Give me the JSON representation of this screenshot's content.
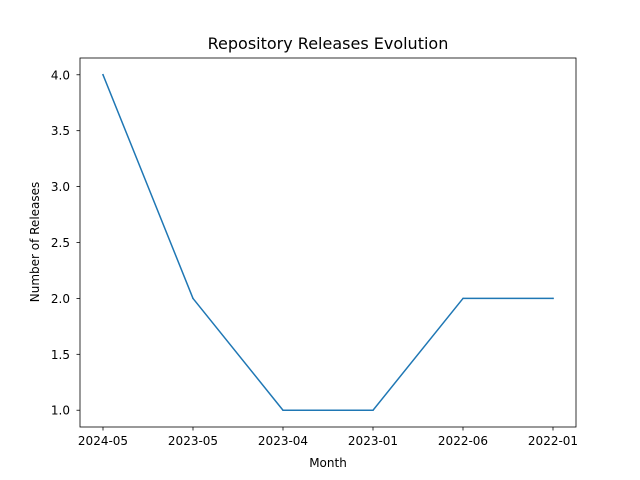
{
  "chart_data": {
    "type": "line",
    "title": "Repository Releases Evolution",
    "xlabel": "Month",
    "ylabel": "Number of Releases",
    "categories": [
      "2024-05",
      "2023-05",
      "2023-04",
      "2023-01",
      "2022-06",
      "2022-01"
    ],
    "series": [
      {
        "values": [
          4,
          2,
          1,
          1,
          2,
          2
        ],
        "color": "#1f77b4"
      }
    ],
    "yticks": [
      1.0,
      1.5,
      2.0,
      2.5,
      3.0,
      3.5,
      4.0
    ],
    "ytick_labels": [
      "1.0",
      "1.5",
      "2.0",
      "2.5",
      "3.0",
      "3.5",
      "4.0"
    ],
    "ylim": [
      0.85,
      4.15
    ],
    "grid": false,
    "legend": "none"
  }
}
